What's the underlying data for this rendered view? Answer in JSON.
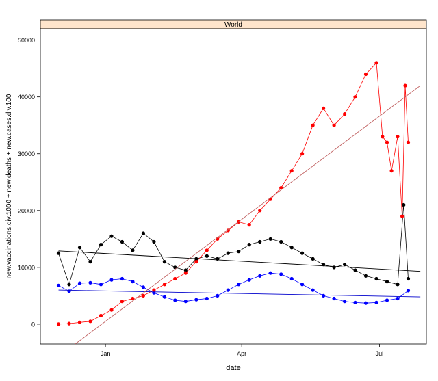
{
  "chart_data": {
    "type": "scatter",
    "strip_label": "World",
    "title": "",
    "xlabel": "date",
    "ylabel": "new.vaccinations.div.1000 + new.deaths + new.cases.div.100",
    "x_type": "date",
    "xlim": [
      "2020-11-19",
      "2021-08-01"
    ],
    "ylim": [
      -3500,
      52000
    ],
    "x_ticks": [
      {
        "date": "2021-01-01",
        "label": "Jan"
      },
      {
        "date": "2021-04-01",
        "label": "Apr"
      },
      {
        "date": "2021-07-01",
        "label": "Jul"
      }
    ],
    "y_ticks": [
      0,
      10000,
      20000,
      30000,
      40000,
      50000
    ],
    "colors": {
      "new.cases.div.100": "#000000",
      "new.deaths": "#0000ff",
      "new.vaccinations.div.1000": "#ff0000",
      "fit_line_cases": "#000000",
      "fit_line_deaths": "#0000cc",
      "fit_line_vaccinations": "#c06060",
      "strip_background": "#ffe5cc"
    },
    "series": [
      {
        "key": "new.cases.div.100",
        "x": [
          "2020-12-01",
          "2020-12-08",
          "2020-12-15",
          "2020-12-22",
          "2020-12-29",
          "2021-01-05",
          "2021-01-12",
          "2021-01-19",
          "2021-01-26",
          "2021-02-02",
          "2021-02-09",
          "2021-02-16",
          "2021-02-23",
          "2021-03-02",
          "2021-03-09",
          "2021-03-16",
          "2021-03-23",
          "2021-03-30",
          "2021-04-06",
          "2021-04-13",
          "2021-04-20",
          "2021-04-27",
          "2021-05-04",
          "2021-05-11",
          "2021-05-18",
          "2021-05-25",
          "2021-06-01",
          "2021-06-08",
          "2021-06-15",
          "2021-06-22",
          "2021-06-29",
          "2021-07-06",
          "2021-07-13",
          "2021-07-17",
          "2021-07-20"
        ],
        "values": [
          12500,
          7000,
          13500,
          11000,
          14000,
          15500,
          14500,
          13000,
          16000,
          14500,
          11000,
          10000,
          9500,
          11500,
          12000,
          11500,
          12500,
          12800,
          14000,
          14500,
          15000,
          14500,
          13500,
          12500,
          11500,
          10500,
          10000,
          10500,
          9500,
          8500,
          8000,
          7500,
          7000,
          21000,
          8000
        ],
        "fit": [
          [
            "2020-12-01",
            12900
          ],
          [
            "2021-07-28",
            9300
          ]
        ]
      },
      {
        "key": "new.deaths",
        "x": [
          "2020-12-01",
          "2020-12-08",
          "2020-12-15",
          "2020-12-22",
          "2020-12-29",
          "2021-01-05",
          "2021-01-12",
          "2021-01-19",
          "2021-01-26",
          "2021-02-02",
          "2021-02-09",
          "2021-02-16",
          "2021-02-23",
          "2021-03-02",
          "2021-03-09",
          "2021-03-16",
          "2021-03-23",
          "2021-03-30",
          "2021-04-06",
          "2021-04-13",
          "2021-04-20",
          "2021-04-27",
          "2021-05-04",
          "2021-05-11",
          "2021-05-18",
          "2021-05-25",
          "2021-06-01",
          "2021-06-08",
          "2021-06-15",
          "2021-06-22",
          "2021-06-29",
          "2021-07-06",
          "2021-07-13",
          "2021-07-20"
        ],
        "values": [
          6800,
          5800,
          7200,
          7300,
          7000,
          7800,
          8000,
          7500,
          6500,
          5500,
          4800,
          4200,
          4000,
          4300,
          4500,
          5000,
          6000,
          7000,
          7800,
          8500,
          9000,
          8800,
          8000,
          7000,
          6000,
          5000,
          4500,
          4000,
          3800,
          3700,
          3800,
          4200,
          4500,
          5900
        ],
        "fit": [
          [
            "2020-12-01",
            6000
          ],
          [
            "2021-07-28",
            4800
          ]
        ]
      },
      {
        "key": "new.vaccinations.div.1000",
        "x": [
          "2020-12-01",
          "2020-12-08",
          "2020-12-15",
          "2020-12-22",
          "2020-12-29",
          "2021-01-05",
          "2021-01-12",
          "2021-01-19",
          "2021-01-26",
          "2021-02-02",
          "2021-02-09",
          "2021-02-16",
          "2021-02-23",
          "2021-03-02",
          "2021-03-09",
          "2021-03-16",
          "2021-03-23",
          "2021-03-30",
          "2021-04-06",
          "2021-04-13",
          "2021-04-20",
          "2021-04-27",
          "2021-05-04",
          "2021-05-11",
          "2021-05-18",
          "2021-05-25",
          "2021-06-01",
          "2021-06-08",
          "2021-06-15",
          "2021-06-22",
          "2021-06-29",
          "2021-07-03",
          "2021-07-06",
          "2021-07-09",
          "2021-07-13",
          "2021-07-16",
          "2021-07-18",
          "2021-07-20"
        ],
        "values": [
          0,
          100,
          300,
          500,
          1500,
          2500,
          4000,
          4500,
          5000,
          6000,
          7000,
          8000,
          9000,
          11000,
          13000,
          15000,
          16500,
          18000,
          17500,
          20000,
          22000,
          24000,
          27000,
          30000,
          35000,
          38000,
          35000,
          37000,
          40000,
          44000,
          46000,
          33000,
          32000,
          27000,
          33000,
          19000,
          42000,
          32000
        ],
        "fit": [
          [
            "2020-12-12",
            -3500
          ],
          [
            "2021-07-28",
            42000
          ]
        ]
      }
    ]
  }
}
